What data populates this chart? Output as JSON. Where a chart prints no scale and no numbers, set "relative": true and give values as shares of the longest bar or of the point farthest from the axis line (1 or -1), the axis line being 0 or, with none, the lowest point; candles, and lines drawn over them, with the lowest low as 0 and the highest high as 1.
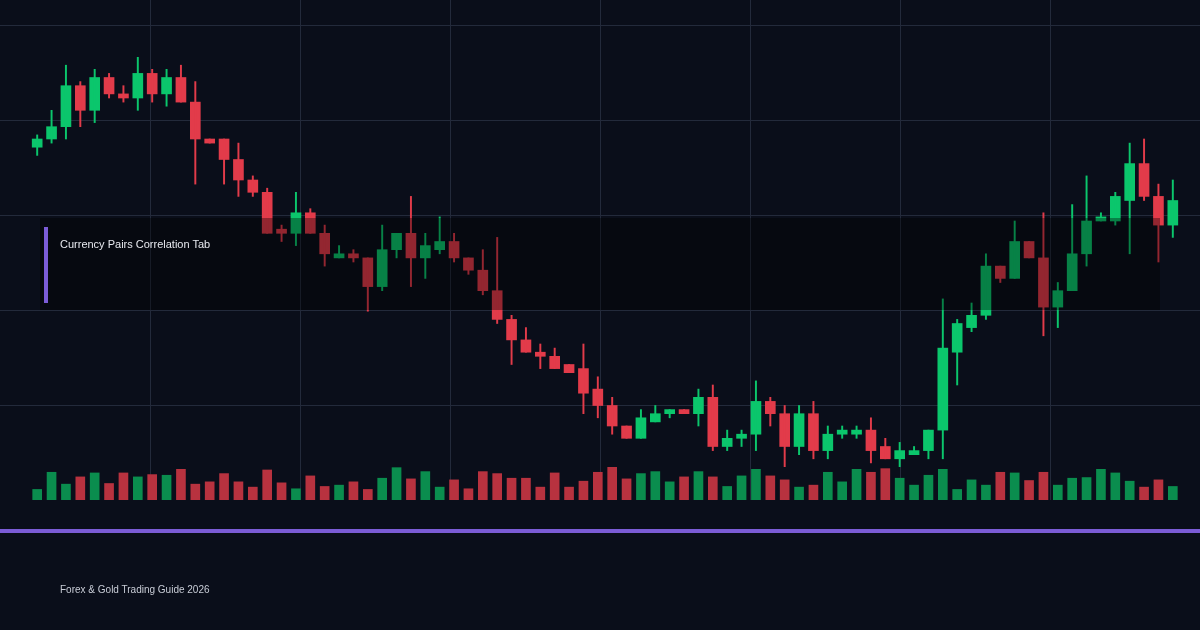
{
  "chart_data": [
    {
      "type": "candlestick",
      "title": "Currency Pairs Correlation Tab",
      "annotations": [
        "Forex & Gold Trading Guide 2026"
      ],
      "relative": true,
      "grid": true,
      "categories": [
        null,
        null,
        null,
        null,
        null,
        null,
        null,
        null,
        null,
        null,
        null,
        null,
        null,
        null,
        null,
        null,
        null,
        null,
        null,
        null,
        null,
        null,
        null,
        null,
        null,
        null,
        null,
        null,
        null,
        null,
        null,
        null,
        null,
        null,
        null,
        null,
        null,
        null,
        null,
        null,
        null,
        null,
        null,
        null,
        null,
        null,
        null,
        null,
        null,
        null,
        null,
        null,
        null,
        null,
        null,
        null,
        null,
        null,
        null,
        null,
        null,
        null,
        null,
        null,
        null,
        null,
        null,
        null,
        null,
        null,
        null,
        null,
        null,
        null,
        null,
        null,
        null,
        null,
        null,
        null
      ],
      "ohlc": [
        [
          0.78,
          0.81,
          0.76,
          0.8
        ],
        [
          0.8,
          0.87,
          0.79,
          0.83
        ],
        [
          0.83,
          0.98,
          0.8,
          0.93
        ],
        [
          0.93,
          0.94,
          0.83,
          0.87
        ],
        [
          0.87,
          0.97,
          0.84,
          0.95
        ],
        [
          0.95,
          0.96,
          0.9,
          0.91
        ],
        [
          0.91,
          0.93,
          0.89,
          0.9
        ],
        [
          0.9,
          1.0,
          0.87,
          0.96
        ],
        [
          0.96,
          0.97,
          0.89,
          0.91
        ],
        [
          0.91,
          0.97,
          0.88,
          0.95
        ],
        [
          0.95,
          0.98,
          0.89,
          0.89
        ],
        [
          0.89,
          0.94,
          0.69,
          0.8
        ],
        [
          0.8,
          0.8,
          0.79,
          0.79
        ],
        [
          0.8,
          0.8,
          0.69,
          0.75
        ],
        [
          0.75,
          0.79,
          0.66,
          0.7
        ],
        [
          0.7,
          0.71,
          0.66,
          0.67
        ],
        [
          0.67,
          0.68,
          0.57,
          0.57
        ],
        [
          0.58,
          0.59,
          0.55,
          0.57
        ],
        [
          0.57,
          0.67,
          0.54,
          0.62
        ],
        [
          0.62,
          0.63,
          0.57,
          0.57
        ],
        [
          0.57,
          0.59,
          0.49,
          0.52
        ],
        [
          0.51,
          0.54,
          0.51,
          0.52
        ],
        [
          0.52,
          0.53,
          0.5,
          0.51
        ],
        [
          0.51,
          0.51,
          0.38,
          0.44
        ],
        [
          0.44,
          0.59,
          0.43,
          0.53
        ],
        [
          0.53,
          0.57,
          0.51,
          0.57
        ],
        [
          0.57,
          0.66,
          0.44,
          0.51
        ],
        [
          0.51,
          0.57,
          0.46,
          0.54
        ],
        [
          0.53,
          0.61,
          0.52,
          0.55
        ],
        [
          0.55,
          0.57,
          0.5,
          0.51
        ],
        [
          0.51,
          0.51,
          0.47,
          0.48
        ],
        [
          0.48,
          0.53,
          0.42,
          0.43
        ],
        [
          0.43,
          0.56,
          0.35,
          0.36
        ],
        [
          0.36,
          0.37,
          0.25,
          0.31
        ],
        [
          0.31,
          0.34,
          0.28,
          0.28
        ],
        [
          0.28,
          0.3,
          0.24,
          0.27
        ],
        [
          0.27,
          0.29,
          0.24,
          0.24
        ],
        [
          0.25,
          0.25,
          0.23,
          0.23
        ],
        [
          0.24,
          0.3,
          0.13,
          0.18
        ],
        [
          0.19,
          0.22,
          0.12,
          0.15
        ],
        [
          0.15,
          0.17,
          0.08,
          0.1
        ],
        [
          0.1,
          0.1,
          0.07,
          0.07
        ],
        [
          0.07,
          0.14,
          0.07,
          0.12
        ],
        [
          0.11,
          0.15,
          0.11,
          0.13
        ],
        [
          0.13,
          0.14,
          0.12,
          0.14
        ],
        [
          0.14,
          0.14,
          0.13,
          0.13
        ],
        [
          0.13,
          0.19,
          0.1,
          0.17
        ],
        [
          0.17,
          0.2,
          0.04,
          0.05
        ],
        [
          0.05,
          0.09,
          0.04,
          0.07
        ],
        [
          0.07,
          0.09,
          0.05,
          0.08
        ],
        [
          0.08,
          0.21,
          0.04,
          0.16
        ],
        [
          0.16,
          0.17,
          0.1,
          0.13
        ],
        [
          0.13,
          0.15,
          0.0,
          0.05
        ],
        [
          0.05,
          0.15,
          0.03,
          0.13
        ],
        [
          0.13,
          0.16,
          0.02,
          0.04
        ],
        [
          0.04,
          0.1,
          0.02,
          0.08
        ],
        [
          0.08,
          0.1,
          0.07,
          0.09
        ],
        [
          0.08,
          0.1,
          0.07,
          0.09
        ],
        [
          0.09,
          0.12,
          0.01,
          0.04
        ],
        [
          0.05,
          0.07,
          0.02,
          0.02
        ],
        [
          0.02,
          0.06,
          0.0,
          0.04
        ],
        [
          0.03,
          0.05,
          0.03,
          0.04
        ],
        [
          0.04,
          0.09,
          0.02,
          0.09
        ],
        [
          0.09,
          0.41,
          0.02,
          0.29
        ],
        [
          0.28,
          0.36,
          0.2,
          0.35
        ],
        [
          0.34,
          0.4,
          0.33,
          0.37
        ],
        [
          0.37,
          0.52,
          0.36,
          0.49
        ],
        [
          0.49,
          0.49,
          0.45,
          0.46
        ],
        [
          0.46,
          0.6,
          0.46,
          0.55
        ],
        [
          0.55,
          0.55,
          0.51,
          0.51
        ],
        [
          0.51,
          0.62,
          0.32,
          0.39
        ],
        [
          0.39,
          0.45,
          0.34,
          0.43
        ],
        [
          0.43,
          0.64,
          0.43,
          0.52
        ],
        [
          0.52,
          0.71,
          0.49,
          0.6
        ],
        [
          0.6,
          0.62,
          0.6,
          0.61
        ],
        [
          0.6,
          0.67,
          0.59,
          0.66
        ],
        [
          0.65,
          0.79,
          0.52,
          0.74
        ],
        [
          0.74,
          0.8,
          0.65,
          0.66
        ],
        [
          0.66,
          0.69,
          0.5,
          0.59
        ],
        [
          0.59,
          0.7,
          0.56,
          0.65
        ]
      ],
      "colors": [
        "#0bc66c",
        "#0bc66c",
        "#0bc66c",
        "#e23b4a",
        "#0bc66c",
        "#e23b4a",
        "#e23b4a",
        "#0bc66c",
        "#e23b4a",
        "#0bc66c",
        "#e23b4a",
        "#e23b4a",
        "#e23b4a",
        "#e23b4a",
        "#e23b4a",
        "#e23b4a",
        "#e23b4a",
        "#e23b4a",
        "#0bc66c",
        "#e23b4a",
        "#e23b4a",
        "#0bc66c",
        "#e23b4a",
        "#e23b4a",
        "#0bc66c",
        "#0bc66c",
        "#e23b4a",
        "#0bc66c",
        "#0bc66c",
        "#e23b4a",
        "#e23b4a",
        "#e23b4a",
        "#e23b4a",
        "#e23b4a",
        "#e23b4a",
        "#e23b4a",
        "#e23b4a",
        "#e23b4a",
        "#e23b4a",
        "#e23b4a",
        "#e23b4a",
        "#e23b4a",
        "#0bc66c",
        "#0bc66c",
        "#0bc66c",
        "#e23b4a",
        "#0bc66c",
        "#e23b4a",
        "#0bc66c",
        "#0bc66c",
        "#0bc66c",
        "#e23b4a",
        "#e23b4a",
        "#0bc66c",
        "#e23b4a",
        "#0bc66c",
        "#0bc66c",
        "#0bc66c",
        "#e23b4a",
        "#e23b4a",
        "#0bc66c",
        "#0bc66c",
        "#0bc66c",
        "#0bc66c",
        "#0bc66c",
        "#0bc66c",
        "#0bc66c",
        "#e23b4a",
        "#0bc66c",
        "#e23b4a",
        "#e23b4a",
        "#0bc66c",
        "#0bc66c",
        "#0bc66c",
        "#0bc66c",
        "#0bc66c",
        "#0bc66c",
        "#e23b4a",
        "#e23b4a",
        "#0bc66c"
      ]
    },
    {
      "type": "bar",
      "relative": true,
      "categories": [
        null,
        null,
        null,
        null,
        null,
        null,
        null,
        null,
        null,
        null,
        null,
        null,
        null,
        null,
        null,
        null,
        null,
        null,
        null,
        null,
        null,
        null,
        null,
        null,
        null,
        null,
        null,
        null,
        null,
        null,
        null,
        null,
        null,
        null,
        null,
        null,
        null,
        null,
        null,
        null,
        null,
        null,
        null,
        null,
        null,
        null,
        null,
        null,
        null,
        null,
        null,
        null,
        null,
        null,
        null,
        null,
        null,
        null,
        null,
        null,
        null,
        null,
        null,
        null,
        null,
        null,
        null,
        null,
        null,
        null,
        null,
        null,
        null,
        null,
        null,
        null,
        null,
        null,
        null,
        null
      ],
      "values": [
        0.32,
        0.84,
        0.48,
        0.7,
        0.82,
        0.5,
        0.82,
        0.7,
        0.77,
        0.75,
        0.93,
        0.48,
        0.55,
        0.8,
        0.55,
        0.39,
        0.91,
        0.52,
        0.34,
        0.73,
        0.41,
        0.45,
        0.55,
        0.32,
        0.66,
        0.98,
        0.64,
        0.86,
        0.39,
        0.61,
        0.34,
        0.86,
        0.8,
        0.66,
        0.66,
        0.39,
        0.82,
        0.39,
        0.57,
        0.84,
        1,
        0.64,
        0.8,
        0.86,
        0.55,
        0.7,
        0.86,
        0.7,
        0.41,
        0.73,
        0.93,
        0.73,
        0.61,
        0.39,
        0.45,
        0.84,
        0.55,
        0.93,
        0.84,
        0.95,
        0.66,
        0.45,
        0.75,
        0.93,
        0.32,
        0.61,
        0.45,
        0.84,
        0.82,
        0.59,
        0.84,
        0.45,
        0.66,
        0.68,
        0.93,
        0.82,
        0.57,
        0.39,
        0.61,
        0.41
      ],
      "colors": [
        "#0a8d4e",
        "#0a8d4e",
        "#0a8d4e",
        "#b8323f",
        "#0a8d4e",
        "#b8323f",
        "#b8323f",
        "#0a8d4e",
        "#b8323f",
        "#0a8d4e",
        "#b8323f",
        "#b8323f",
        "#b8323f",
        "#b8323f",
        "#b8323f",
        "#b8323f",
        "#b8323f",
        "#b8323f",
        "#0a8d4e",
        "#b8323f",
        "#b8323f",
        "#0a8d4e",
        "#b8323f",
        "#b8323f",
        "#0a8d4e",
        "#0a8d4e",
        "#b8323f",
        "#0a8d4e",
        "#0a8d4e",
        "#b8323f",
        "#b8323f",
        "#b8323f",
        "#b8323f",
        "#b8323f",
        "#b8323f",
        "#b8323f",
        "#b8323f",
        "#b8323f",
        "#b8323f",
        "#b8323f",
        "#b8323f",
        "#b8323f",
        "#0a8d4e",
        "#0a8d4e",
        "#0a8d4e",
        "#b8323f",
        "#0a8d4e",
        "#b8323f",
        "#0a8d4e",
        "#0a8d4e",
        "#0a8d4e",
        "#b8323f",
        "#b8323f",
        "#0a8d4e",
        "#b8323f",
        "#0a8d4e",
        "#0a8d4e",
        "#0a8d4e",
        "#b8323f",
        "#b8323f",
        "#0a8d4e",
        "#0a8d4e",
        "#0a8d4e",
        "#0a8d4e",
        "#0a8d4e",
        "#0a8d4e",
        "#0a8d4e",
        "#b8323f",
        "#0a8d4e",
        "#b8323f",
        "#b8323f",
        "#0a8d4e",
        "#0a8d4e",
        "#0a8d4e",
        "#0a8d4e",
        "#0a8d4e",
        "#0a8d4e",
        "#b8323f",
        "#b8323f",
        "#0a8d4e"
      ]
    }
  ]
}
